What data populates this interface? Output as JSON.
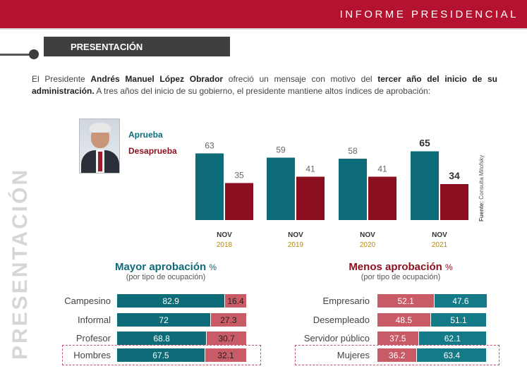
{
  "header": {
    "title": "INFORME PRESIDENCIAL"
  },
  "section": {
    "title": "PRESENTACIÓN",
    "vertical_label": "PRESENTACIÓN"
  },
  "intro": {
    "p1": "El Presidente ",
    "b1": "Andrés Manuel López Obrador",
    "p2": " ofreció un mensaje con motivo del ",
    "b2": "tercer año del inicio de su administración.",
    "p3": " A tres años del inicio de su gobierno, el presidente mantiene altos índices de aprobación:"
  },
  "colors": {
    "approve": "#0e6b78",
    "disapprove": "#8c0f1f",
    "approve_light": "#147a87",
    "disapprove_light": "#c95b66",
    "brand": "#b5122f"
  },
  "chart_data": [
    {
      "type": "bar",
      "categories": [
        "NOV 2018",
        "NOV 2019",
        "NOV 2020",
        "NOV 2021"
      ],
      "category_month": [
        "NOV",
        "NOV",
        "NOV",
        "NOV"
      ],
      "category_year": [
        "2018",
        "2019",
        "2020",
        "2021"
      ],
      "series": [
        {
          "name": "Aprueba",
          "values": [
            63,
            59,
            58,
            65
          ]
        },
        {
          "name": "Desaprueba",
          "values": [
            35,
            41,
            41,
            34
          ]
        }
      ],
      "ylim": [
        0,
        75
      ],
      "legend": "left",
      "source": "Consulta Mitofsky",
      "source_label": "Fuente:"
    },
    {
      "type": "bar",
      "title": "Mayor aprobación",
      "title_unit": "%",
      "subtitle": "(por tipo de ocupación)",
      "categories": [
        "Campesino",
        "Informal",
        "Profesor",
        "Hombres"
      ],
      "series": [
        {
          "name": "Aprueba",
          "values": [
            82.9,
            72,
            68.8,
            67.5
          ]
        },
        {
          "name": "Desaprueba",
          "values": [
            16.4,
            27.3,
            30.7,
            32.1
          ]
        }
      ],
      "stacked": true,
      "orientation": "horizontal",
      "value_labels": [
        [
          "82.9",
          "16.4"
        ],
        [
          "72",
          "27.3"
        ],
        [
          "68.8",
          "30.7"
        ],
        [
          "67.5",
          "32.1"
        ]
      ]
    },
    {
      "type": "bar",
      "title": "Menos aprobación",
      "title_unit": "%",
      "subtitle": "(por tipo de ocupación)",
      "categories": [
        "Empresario",
        "Desempleado",
        "Servidor público",
        "Mujeres"
      ],
      "series": [
        {
          "name": "Desaprueba",
          "values": [
            52.1,
            48.5,
            37.5,
            36.2
          ]
        },
        {
          "name": "Aprueba",
          "values": [
            47.6,
            51.1,
            62.1,
            63.4
          ]
        }
      ],
      "stacked": true,
      "orientation": "horizontal",
      "value_labels": [
        [
          "52.1",
          "47.6"
        ],
        [
          "48.5",
          "51.1"
        ],
        [
          "37.5",
          "62.1"
        ],
        [
          "36.2",
          "63.4"
        ]
      ]
    }
  ]
}
